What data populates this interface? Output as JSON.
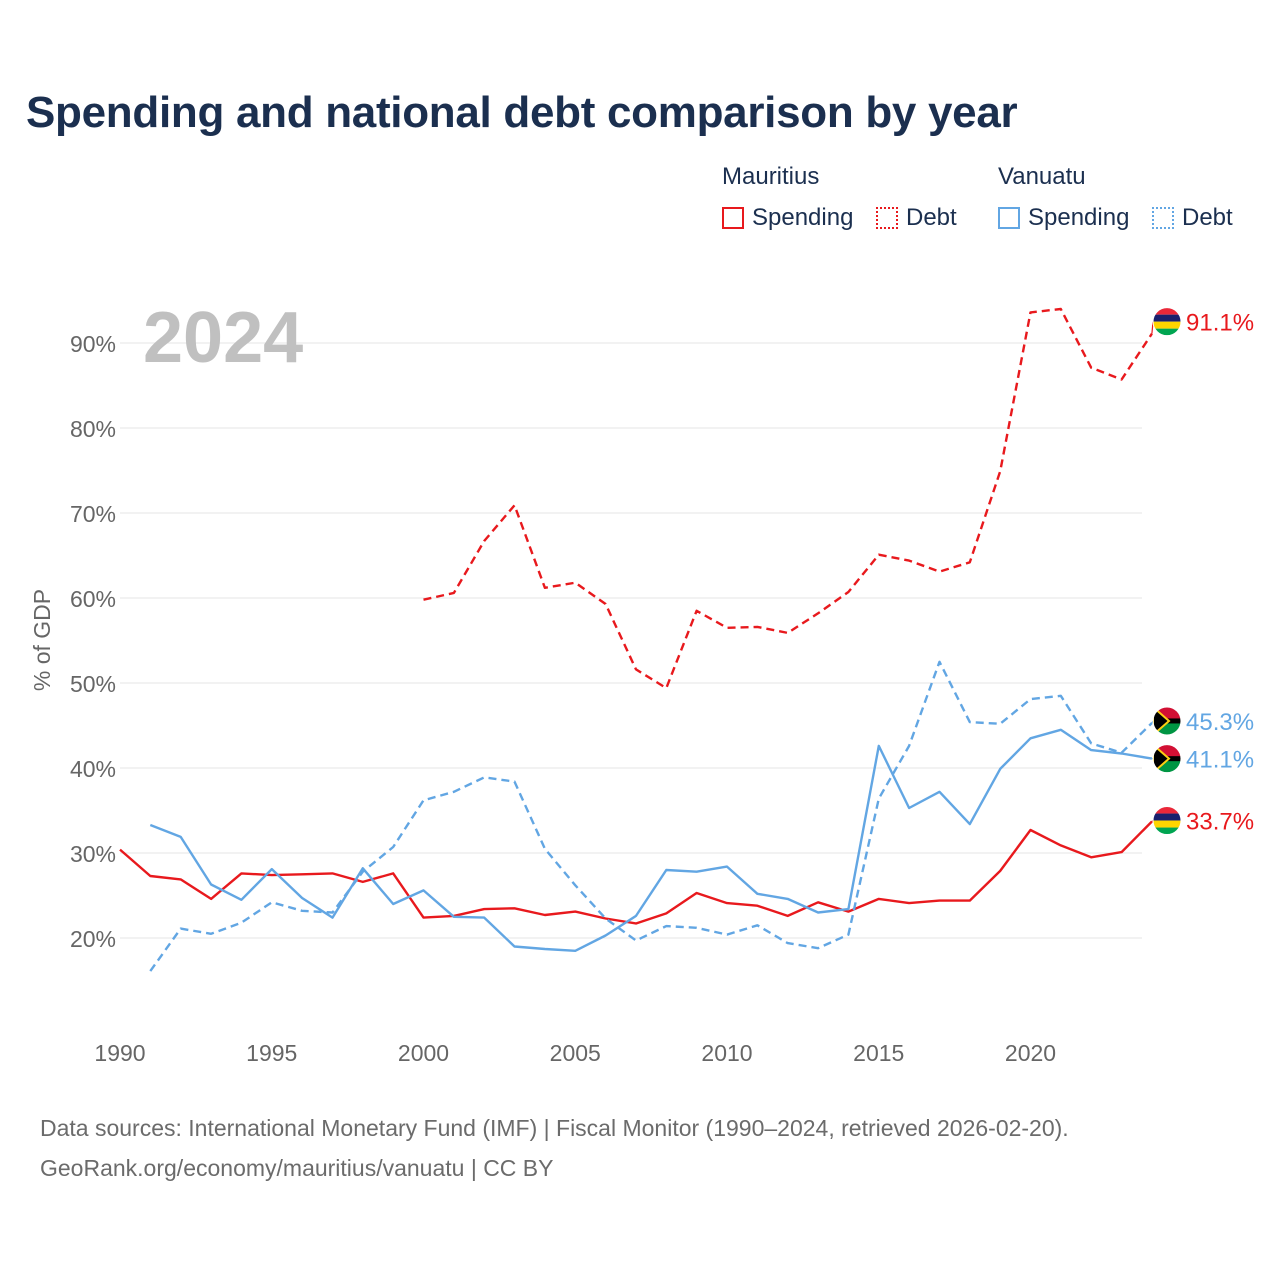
{
  "title": "Spending and national debt comparison by year",
  "legend": {
    "mauritius": "Mauritius",
    "vanuatu": "Vanuatu",
    "spending": "Spending",
    "debt": "Debt"
  },
  "colors": {
    "mauritius": "#e8191d",
    "vanuatu": "#62a6e3",
    "grid": "#e6e6e6",
    "axis_text": "#666666",
    "year_label": "#c0c0c0"
  },
  "sources": {
    "line1": "Data sources: International Monetary Fund (IMF) | Fiscal Monitor (1990–2024, retrieved 2026-02-20).",
    "line2": "GeoRank.org/economy/mauritius/vanuatu | CC BY"
  },
  "chart_data": {
    "type": "line",
    "title": "Spending and national debt comparison by year",
    "current_year_label": "2024",
    "ylabel": "% of GDP",
    "xlabel": "",
    "xlim": [
      1990,
      2024
    ],
    "ylim": [
      10,
      95
    ],
    "x_ticks": [
      1990,
      1995,
      2000,
      2005,
      2010,
      2015,
      2020
    ],
    "y_ticks": [
      20,
      30,
      40,
      50,
      60,
      70,
      80,
      90
    ],
    "y_tick_labels": [
      "20%",
      "30%",
      "40%",
      "50%",
      "60%",
      "70%",
      "80%",
      "90%"
    ],
    "series": [
      {
        "name": "Mauritius Spending",
        "country": "mauritius",
        "style": "solid",
        "end_label": "33.7%",
        "x": [
          1990,
          1991,
          1992,
          1993,
          1994,
          1995,
          1996,
          1997,
          1998,
          1999,
          2000,
          2001,
          2002,
          2003,
          2004,
          2005,
          2006,
          2007,
          2008,
          2009,
          2010,
          2011,
          2012,
          2013,
          2014,
          2015,
          2016,
          2017,
          2018,
          2019,
          2020,
          2021,
          2022,
          2023,
          2024
        ],
        "values": [
          30.4,
          27.3,
          26.9,
          24.6,
          27.6,
          27.4,
          27.5,
          27.6,
          26.6,
          27.6,
          22.4,
          22.6,
          23.4,
          23.5,
          22.7,
          23.1,
          22.3,
          21.7,
          22.9,
          25.3,
          24.1,
          23.8,
          22.6,
          24.2,
          23.1,
          24.6,
          24.1,
          24.4,
          24.4,
          27.9,
          32.7,
          30.9,
          29.5,
          30.1,
          33.7
        ]
      },
      {
        "name": "Mauritius Debt",
        "country": "mauritius",
        "style": "dashed",
        "end_label": "91.1%",
        "x": [
          2000,
          2001,
          2002,
          2003,
          2004,
          2005,
          2006,
          2007,
          2008,
          2009,
          2010,
          2011,
          2012,
          2013,
          2014,
          2015,
          2016,
          2017,
          2018,
          2019,
          2020,
          2021,
          2022,
          2023,
          2024
        ],
        "values": [
          59.8,
          60.6,
          66.7,
          70.9,
          61.2,
          61.8,
          59.3,
          51.6,
          49.4,
          58.5,
          56.5,
          56.6,
          55.9,
          58.2,
          60.7,
          65.1,
          64.4,
          63.1,
          64.2,
          74.9,
          93.6,
          94.0,
          87.1,
          85.7,
          91.1
        ]
      },
      {
        "name": "Vanuatu Spending",
        "country": "vanuatu",
        "style": "solid",
        "end_label": "41.1%",
        "x": [
          1991,
          1992,
          1993,
          1994,
          1995,
          1996,
          1997,
          1998,
          1999,
          2000,
          2001,
          2002,
          2003,
          2004,
          2005,
          2006,
          2007,
          2008,
          2009,
          2010,
          2011,
          2012,
          2013,
          2014,
          2015,
          2016,
          2017,
          2018,
          2019,
          2020,
          2021,
          2022,
          2023,
          2024
        ],
        "values": [
          33.3,
          31.9,
          26.3,
          24.5,
          28.1,
          24.7,
          22.4,
          28.2,
          24.0,
          25.6,
          22.5,
          22.4,
          19.0,
          18.7,
          18.5,
          20.3,
          22.6,
          28.0,
          27.8,
          28.4,
          25.2,
          24.6,
          23.0,
          23.4,
          42.6,
          35.3,
          37.2,
          33.4,
          39.9,
          43.5,
          44.5,
          42.1,
          41.7,
          41.1
        ]
      },
      {
        "name": "Vanuatu Debt",
        "country": "vanuatu",
        "style": "dashed",
        "end_label": "45.3%",
        "x": [
          1991,
          1992,
          1993,
          1994,
          1995,
          1996,
          1997,
          1998,
          1999,
          2000,
          2001,
          2002,
          2003,
          2004,
          2005,
          2006,
          2007,
          2008,
          2009,
          2010,
          2011,
          2012,
          2013,
          2014,
          2015,
          2016,
          2017,
          2018,
          2019,
          2020,
          2021,
          2022,
          2023,
          2024
        ],
        "values": [
          16.1,
          21.1,
          20.5,
          21.8,
          24.2,
          23.2,
          23.0,
          27.8,
          30.7,
          36.2,
          37.2,
          38.9,
          38.4,
          30.5,
          26.2,
          22.3,
          19.7,
          21.4,
          21.2,
          20.4,
          21.5,
          19.4,
          18.8,
          20.4,
          36.4,
          42.6,
          52.5,
          45.4,
          45.2,
          48.1,
          48.5,
          42.9,
          41.8,
          45.3
        ]
      }
    ]
  }
}
